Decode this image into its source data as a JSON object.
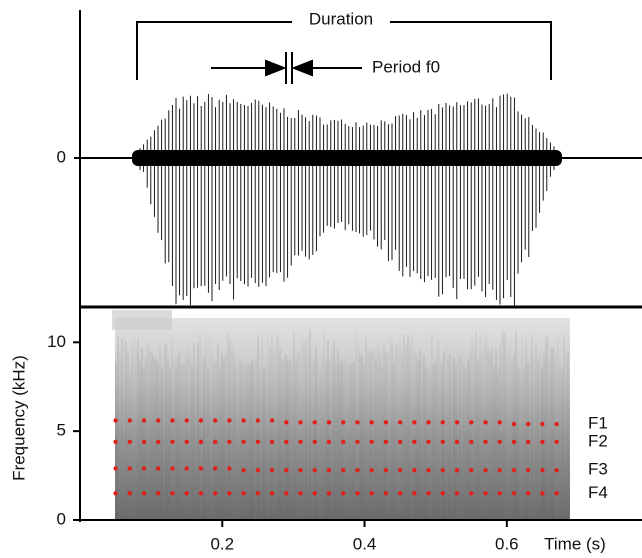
{
  "chart_data": [
    {
      "type": "waveform",
      "yticks": [
        0
      ],
      "annotations": {
        "duration": "Duration",
        "period": "Period f0"
      }
    },
    {
      "type": "spectrogram",
      "xlabel": "Time (s)",
      "ylabel": "Frequency (kHz)",
      "xlim": [
        0,
        0.79
      ],
      "ylim": [
        0,
        12.1
      ],
      "xticks": [
        0.2,
        0.4,
        0.6
      ],
      "yticks": [
        0,
        5,
        10
      ],
      "x": [
        0.05,
        0.07,
        0.09,
        0.11,
        0.13,
        0.15,
        0.17,
        0.19,
        0.21,
        0.23,
        0.25,
        0.27,
        0.29,
        0.31,
        0.33,
        0.35,
        0.37,
        0.39,
        0.41,
        0.43,
        0.45,
        0.47,
        0.49,
        0.51,
        0.53,
        0.55,
        0.57,
        0.59,
        0.61,
        0.63,
        0.65,
        0.67
      ],
      "series": [
        {
          "name": "F1",
          "color": "#e0201b",
          "values": [
            5.6,
            5.6,
            5.6,
            5.6,
            5.6,
            5.6,
            5.6,
            5.6,
            5.6,
            5.6,
            5.6,
            5.6,
            5.5,
            5.5,
            5.5,
            5.5,
            5.5,
            5.5,
            5.5,
            5.5,
            5.5,
            5.5,
            5.5,
            5.5,
            5.5,
            5.5,
            5.5,
            5.5,
            5.4,
            5.4,
            5.4,
            5.4
          ]
        },
        {
          "name": "F2",
          "color": "#e0201b",
          "values": [
            4.4,
            4.4,
            4.4,
            4.4,
            4.4,
            4.4,
            4.4,
            4.4,
            4.4,
            4.4,
            4.4,
            4.4,
            4.4,
            4.4,
            4.4,
            4.4,
            4.4,
            4.4,
            4.4,
            4.4,
            4.4,
            4.4,
            4.4,
            4.4,
            4.4,
            4.4,
            4.4,
            4.4,
            4.4,
            4.4,
            4.4,
            4.4
          ]
        },
        {
          "name": "F3",
          "color": "#e0201b",
          "values": [
            2.9,
            2.9,
            2.9,
            2.9,
            2.9,
            2.9,
            2.9,
            2.9,
            2.9,
            2.8,
            2.8,
            2.8,
            2.8,
            2.8,
            2.8,
            2.8,
            2.8,
            2.8,
            2.8,
            2.8,
            2.8,
            2.8,
            2.8,
            2.8,
            2.8,
            2.8,
            2.8,
            2.8,
            2.8,
            2.8,
            2.8,
            2.8
          ]
        },
        {
          "name": "F4",
          "color": "#e0201b",
          "values": [
            1.5,
            1.5,
            1.5,
            1.5,
            1.5,
            1.5,
            1.5,
            1.5,
            1.5,
            1.5,
            1.5,
            1.5,
            1.5,
            1.5,
            1.5,
            1.5,
            1.5,
            1.5,
            1.5,
            1.5,
            1.5,
            1.5,
            1.5,
            1.5,
            1.5,
            1.5,
            1.5,
            1.5,
            1.5,
            1.5,
            1.5,
            1.5
          ]
        }
      ]
    }
  ]
}
